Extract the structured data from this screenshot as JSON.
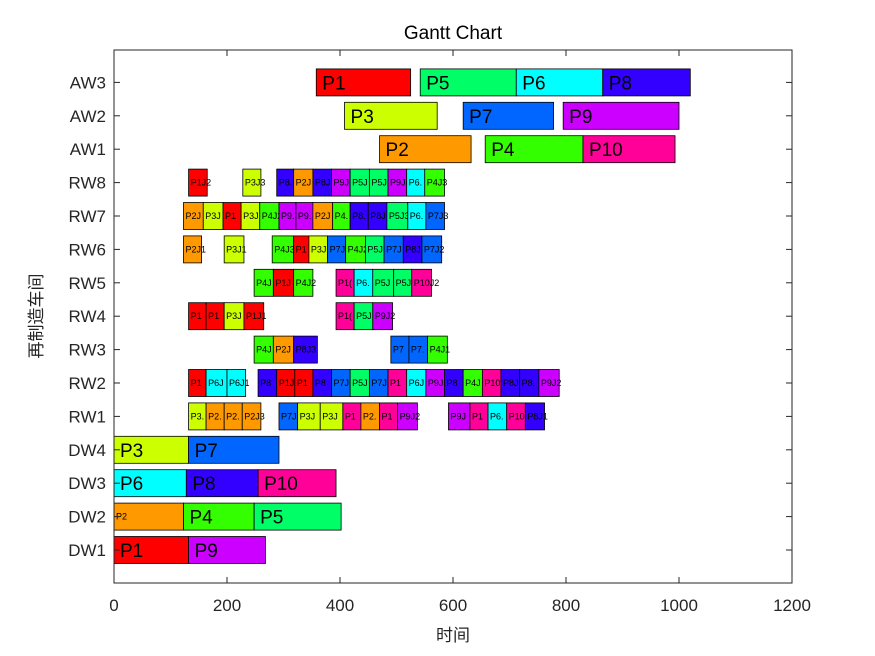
{
  "chart_data": {
    "type": "gantt",
    "title": "Gantt Chart",
    "xlabel": "时间",
    "ylabel": "再制造车间",
    "xlim": [
      0,
      1200
    ],
    "xticks": [
      0,
      200,
      400,
      600,
      800,
      1000,
      1200
    ],
    "grid": false,
    "rows": [
      "DW1",
      "DW2",
      "DW3",
      "DW4",
      "RW1",
      "RW2",
      "RW3",
      "RW4",
      "RW5",
      "RW6",
      "RW7",
      "RW8",
      "AW1",
      "AW2",
      "AW3"
    ],
    "colors": {
      "P1": "#ff0000",
      "P2": "#ff9900",
      "P3": "#ccff00",
      "P4": "#33ff00",
      "P5": "#00ff66",
      "P6": "#00ffff",
      "P7": "#0066ff",
      "P8": "#3300ff",
      "P9": "#cc00ff",
      "P10": "#ff0099"
    },
    "tasks": [
      {
        "row": "DW1",
        "p": "P1",
        "label": "P1",
        "start": 0,
        "end": 132
      },
      {
        "row": "DW1",
        "p": "P9",
        "label": "P9",
        "start": 132,
        "end": 268
      },
      {
        "row": "DW2",
        "p": "P2",
        "label": "P2",
        "start": 0,
        "end": 123
      },
      {
        "row": "DW2",
        "p": "P4",
        "label": "P4",
        "start": 123,
        "end": 248
      },
      {
        "row": "DW2",
        "p": "P5",
        "label": "P5",
        "start": 248,
        "end": 402
      },
      {
        "row": "DW3",
        "p": "P6",
        "label": "P6",
        "start": 0,
        "end": 128
      },
      {
        "row": "DW3",
        "p": "P8",
        "label": "P8",
        "start": 128,
        "end": 255
      },
      {
        "row": "DW3",
        "p": "P10",
        "label": "P10",
        "start": 255,
        "end": 393
      },
      {
        "row": "DW4",
        "p": "P3",
        "label": "P3",
        "start": 0,
        "end": 132
      },
      {
        "row": "DW4",
        "p": "P7",
        "label": "P7",
        "start": 132,
        "end": 292
      },
      {
        "row": "RW1",
        "p": "P3",
        "label": "P3.",
        "start": 132,
        "end": 163
      },
      {
        "row": "RW1",
        "p": "P2",
        "label": "P2.",
        "start": 163,
        "end": 195
      },
      {
        "row": "RW1",
        "p": "P2",
        "label": "P2.",
        "start": 195,
        "end": 227
      },
      {
        "row": "RW1",
        "p": "P2",
        "label": "P2J3",
        "start": 227,
        "end": 260
      },
      {
        "row": "RW1",
        "p": "P7",
        "label": "P7J",
        "start": 292,
        "end": 325
      },
      {
        "row": "RW1",
        "p": "P3",
        "label": "P3J",
        "start": 325,
        "end": 365
      },
      {
        "row": "RW1",
        "p": "P3",
        "label": "P3J",
        "start": 365,
        "end": 405
      },
      {
        "row": "RW1",
        "p": "P10",
        "label": "P1",
        "start": 405,
        "end": 437
      },
      {
        "row": "RW1",
        "p": "P2",
        "label": "P2.",
        "start": 437,
        "end": 470
      },
      {
        "row": "RW1",
        "p": "P10",
        "label": "P1",
        "start": 470,
        "end": 502
      },
      {
        "row": "RW1",
        "p": "P9",
        "label": "P9J2",
        "start": 502,
        "end": 537
      },
      {
        "row": "RW1",
        "p": "P9",
        "label": "P9J",
        "start": 592,
        "end": 630
      },
      {
        "row": "RW1",
        "p": "P10",
        "label": "P1",
        "start": 630,
        "end": 662
      },
      {
        "row": "RW1",
        "p": "P6",
        "label": "P6.",
        "start": 662,
        "end": 695
      },
      {
        "row": "RW1",
        "p": "P10",
        "label": "P10",
        "start": 695,
        "end": 728
      },
      {
        "row": "RW1",
        "p": "P8",
        "label": "P8J1",
        "start": 728,
        "end": 762
      },
      {
        "row": "RW2",
        "p": "P1",
        "label": "P1",
        "start": 132,
        "end": 163
      },
      {
        "row": "RW2",
        "p": "P6",
        "label": "P6J",
        "start": 163,
        "end": 200
      },
      {
        "row": "RW2",
        "p": "P6",
        "label": "P6J1",
        "start": 200,
        "end": 233
      },
      {
        "row": "RW2",
        "p": "P8",
        "label": "P8",
        "start": 255,
        "end": 288
      },
      {
        "row": "RW2",
        "p": "P1",
        "label": "P1J",
        "start": 288,
        "end": 320
      },
      {
        "row": "RW2",
        "p": "P1",
        "label": "P1",
        "start": 320,
        "end": 352
      },
      {
        "row": "RW2",
        "p": "P8",
        "label": "P8",
        "start": 352,
        "end": 385
      },
      {
        "row": "RW2",
        "p": "P7",
        "label": "P7J",
        "start": 385,
        "end": 418
      },
      {
        "row": "RW2",
        "p": "P5",
        "label": "P5J",
        "start": 418,
        "end": 452
      },
      {
        "row": "RW2",
        "p": "P7",
        "label": "P7J",
        "start": 452,
        "end": 485
      },
      {
        "row": "RW2",
        "p": "P10",
        "label": "P1",
        "start": 485,
        "end": 518
      },
      {
        "row": "RW2",
        "p": "P6",
        "label": "P6J",
        "start": 518,
        "end": 552
      },
      {
        "row": "RW2",
        "p": "P9",
        "label": "P9J",
        "start": 552,
        "end": 585
      },
      {
        "row": "RW2",
        "p": "P8",
        "label": "P8",
        "start": 585,
        "end": 618
      },
      {
        "row": "RW2",
        "p": "P4",
        "label": "P4J",
        "start": 618,
        "end": 652
      },
      {
        "row": "RW2",
        "p": "P10",
        "label": "P10",
        "start": 652,
        "end": 685
      },
      {
        "row": "RW2",
        "p": "P8",
        "label": "P8J",
        "start": 685,
        "end": 718
      },
      {
        "row": "RW2",
        "p": "P8",
        "label": "P8.",
        "start": 718,
        "end": 752
      },
      {
        "row": "RW2",
        "p": "P9",
        "label": "P9J2",
        "start": 752,
        "end": 788
      },
      {
        "row": "RW3",
        "p": "P4",
        "label": "P4J",
        "start": 248,
        "end": 282
      },
      {
        "row": "RW3",
        "p": "P2",
        "label": "P2J",
        "start": 282,
        "end": 318
      },
      {
        "row": "RW3",
        "p": "P8",
        "label": "P8J3",
        "start": 318,
        "end": 360
      },
      {
        "row": "RW3",
        "p": "P7",
        "label": "P7",
        "start": 490,
        "end": 522
      },
      {
        "row": "RW3",
        "p": "P7",
        "label": "P7.",
        "start": 522,
        "end": 555
      },
      {
        "row": "RW3",
        "p": "P4",
        "label": "P4J1",
        "start": 555,
        "end": 590
      },
      {
        "row": "RW4",
        "p": "P1",
        "label": "P1",
        "start": 132,
        "end": 163
      },
      {
        "row": "RW4",
        "p": "P1",
        "label": "P1",
        "start": 163,
        "end": 195
      },
      {
        "row": "RW4",
        "p": "P3",
        "label": "P3J",
        "start": 195,
        "end": 230
      },
      {
        "row": "RW4",
        "p": "P1",
        "label": "P1J1",
        "start": 230,
        "end": 265
      },
      {
        "row": "RW4",
        "p": "P10",
        "label": "P1(",
        "start": 393,
        "end": 425
      },
      {
        "row": "RW4",
        "p": "P5",
        "label": "P5J",
        "start": 425,
        "end": 458
      },
      {
        "row": "RW4",
        "p": "P9",
        "label": "P9J2",
        "start": 458,
        "end": 493
      },
      {
        "row": "RW5",
        "p": "P4",
        "label": "P4J",
        "start": 248,
        "end": 282
      },
      {
        "row": "RW5",
        "p": "P1",
        "label": "P1J",
        "start": 282,
        "end": 318
      },
      {
        "row": "RW5",
        "p": "P4",
        "label": "P4J2",
        "start": 318,
        "end": 352
      },
      {
        "row": "RW5",
        "p": "P10",
        "label": "P1(",
        "start": 393,
        "end": 425
      },
      {
        "row": "RW5",
        "p": "P6",
        "label": "P6.",
        "start": 425,
        "end": 458
      },
      {
        "row": "RW5",
        "p": "P5",
        "label": "P5J",
        "start": 458,
        "end": 495
      },
      {
        "row": "RW5",
        "p": "P5",
        "label": "P5J",
        "start": 495,
        "end": 527
      },
      {
        "row": "RW5",
        "p": "P10",
        "label": "P10J2",
        "start": 527,
        "end": 562
      },
      {
        "row": "RW6",
        "p": "P2",
        "label": "P2J1",
        "start": 123,
        "end": 155
      },
      {
        "row": "RW6",
        "p": "P3",
        "label": "P3J1",
        "start": 195,
        "end": 230
      },
      {
        "row": "RW6",
        "p": "P4",
        "label": "P4J3",
        "start": 280,
        "end": 318
      },
      {
        "row": "RW6",
        "p": "P1",
        "label": "P1",
        "start": 318,
        "end": 345
      },
      {
        "row": "RW6",
        "p": "P3",
        "label": "P3J",
        "start": 345,
        "end": 378
      },
      {
        "row": "RW6",
        "p": "P7",
        "label": "P7J",
        "start": 378,
        "end": 410
      },
      {
        "row": "RW6",
        "p": "P4",
        "label": "P4J2",
        "start": 410,
        "end": 445
      },
      {
        "row": "RW6",
        "p": "P5",
        "label": "P5J",
        "start": 445,
        "end": 478
      },
      {
        "row": "RW6",
        "p": "P7",
        "label": "P7J",
        "start": 478,
        "end": 512
      },
      {
        "row": "RW6",
        "p": "P8",
        "label": "P8J",
        "start": 512,
        "end": 545
      },
      {
        "row": "RW6",
        "p": "P7",
        "label": "P7J2",
        "start": 545,
        "end": 580
      },
      {
        "row": "RW7",
        "p": "P2",
        "label": "P2J",
        "start": 123,
        "end": 158
      },
      {
        "row": "RW7",
        "p": "P3",
        "label": "P3J",
        "start": 158,
        "end": 193
      },
      {
        "row": "RW7",
        "p": "P1",
        "label": "P1",
        "start": 193,
        "end": 225
      },
      {
        "row": "RW7",
        "p": "P3",
        "label": "P3J",
        "start": 225,
        "end": 258
      },
      {
        "row": "RW7",
        "p": "P4",
        "label": "P4J2",
        "start": 258,
        "end": 292
      },
      {
        "row": "RW7",
        "p": "P9",
        "label": "P9.",
        "start": 292,
        "end": 322
      },
      {
        "row": "RW7",
        "p": "P9",
        "label": "P9.",
        "start": 322,
        "end": 352
      },
      {
        "row": "RW7",
        "p": "P2",
        "label": "P2J",
        "start": 352,
        "end": 387
      },
      {
        "row": "RW7",
        "p": "P4",
        "label": "P4.",
        "start": 387,
        "end": 418
      },
      {
        "row": "RW7",
        "p": "P8",
        "label": "P8.",
        "start": 418,
        "end": 450
      },
      {
        "row": "RW7",
        "p": "P8",
        "label": "P8J",
        "start": 450,
        "end": 483
      },
      {
        "row": "RW7",
        "p": "P5",
        "label": "P5J3",
        "start": 483,
        "end": 520
      },
      {
        "row": "RW7",
        "p": "P6",
        "label": "P6.",
        "start": 520,
        "end": 552
      },
      {
        "row": "RW7",
        "p": "P7",
        "label": "P7J3",
        "start": 552,
        "end": 585
      },
      {
        "row": "RW8",
        "p": "P1",
        "label": "P1J2",
        "start": 132,
        "end": 165
      },
      {
        "row": "RW8",
        "p": "P3",
        "label": "P3J3",
        "start": 228,
        "end": 260
      },
      {
        "row": "RW8",
        "p": "P8",
        "label": "P8.",
        "start": 288,
        "end": 318
      },
      {
        "row": "RW8",
        "p": "P2",
        "label": "P2J",
        "start": 318,
        "end": 352
      },
      {
        "row": "RW8",
        "p": "P8",
        "label": "P8J",
        "start": 352,
        "end": 385
      },
      {
        "row": "RW8",
        "p": "P9",
        "label": "P9J",
        "start": 385,
        "end": 418
      },
      {
        "row": "RW8",
        "p": "P5",
        "label": "P5J",
        "start": 418,
        "end": 452
      },
      {
        "row": "RW8",
        "p": "P5",
        "label": "P5J",
        "start": 452,
        "end": 485
      },
      {
        "row": "RW8",
        "p": "P9",
        "label": "P9J",
        "start": 485,
        "end": 518
      },
      {
        "row": "RW8",
        "p": "P6",
        "label": "P6.",
        "start": 518,
        "end": 550
      },
      {
        "row": "RW8",
        "p": "P4",
        "label": "P4J3",
        "start": 550,
        "end": 585
      },
      {
        "row": "AW1",
        "p": "P2",
        "label": "P2",
        "start": 470,
        "end": 632
      },
      {
        "row": "AW1",
        "p": "P4",
        "label": "P4",
        "start": 657,
        "end": 830
      },
      {
        "row": "AW1",
        "p": "P10",
        "label": "P10",
        "start": 830,
        "end": 993
      },
      {
        "row": "AW2",
        "p": "P3",
        "label": "P3",
        "start": 408,
        "end": 572
      },
      {
        "row": "AW2",
        "p": "P7",
        "label": "P7",
        "start": 618,
        "end": 778
      },
      {
        "row": "AW2",
        "p": "P9",
        "label": "P9",
        "start": 795,
        "end": 1000
      },
      {
        "row": "AW3",
        "p": "P1",
        "label": "P1",
        "start": 358,
        "end": 525
      },
      {
        "row": "AW3",
        "p": "P5",
        "label": "P5",
        "start": 542,
        "end": 712
      },
      {
        "row": "AW3",
        "p": "P6",
        "label": "P6",
        "start": 712,
        "end": 865
      },
      {
        "row": "AW3",
        "p": "P8",
        "label": "P8",
        "start": 865,
        "end": 1020
      }
    ]
  }
}
